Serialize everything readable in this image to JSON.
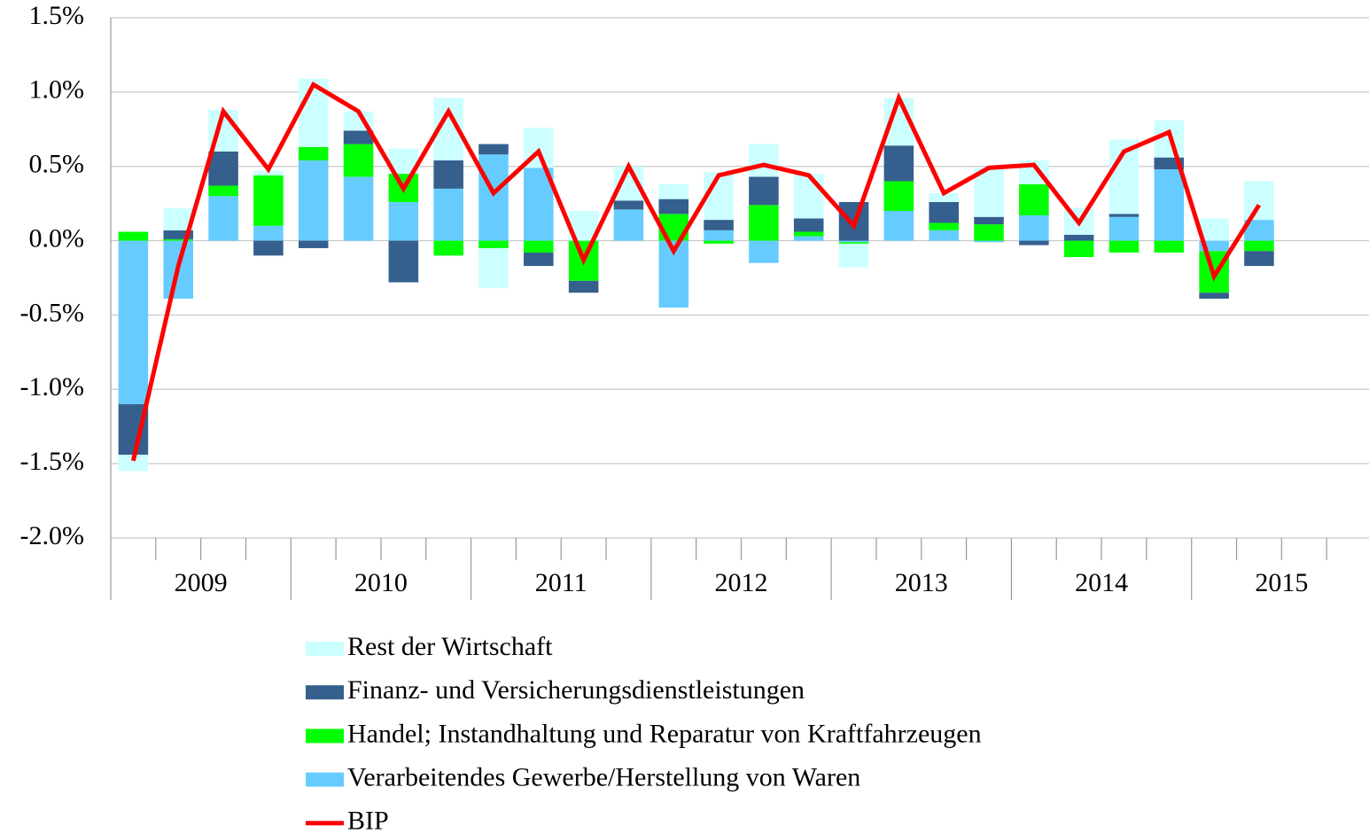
{
  "chart_data": {
    "type": "bar",
    "stacked": true,
    "year_labels": [
      "2009",
      "2010",
      "2011",
      "2012",
      "2013",
      "2014",
      "2015"
    ],
    "ylim": [
      -2.0,
      1.5
    ],
    "yticks": [
      {
        "value": -2.0,
        "label": "-2.0%"
      },
      {
        "value": -1.5,
        "label": "-1.5%"
      },
      {
        "value": -1.0,
        "label": "-1.0%"
      },
      {
        "value": -0.5,
        "label": "-0.5%"
      },
      {
        "value": 0.0,
        "label": "0.0%"
      },
      {
        "value": 0.5,
        "label": "0.5%"
      },
      {
        "value": 1.0,
        "label": "1.0%"
      },
      {
        "value": 1.5,
        "label": "1.5%"
      }
    ],
    "grid": true,
    "series": [
      {
        "name": "Rest der Wirtschaft",
        "color": "#ccffff",
        "type": "bar",
        "values": [
          -0.11,
          0.15,
          0.28,
          0.03,
          0.46,
          0.13,
          0.17,
          0.42,
          -0.27,
          0.27,
          0.2,
          0.23,
          0.1,
          0.32,
          0.22,
          0.3,
          -0.16,
          0.32,
          0.06,
          0.33,
          0.16,
          0.18,
          0.5,
          0.25,
          0.15,
          0.26,
          null,
          null
        ]
      },
      {
        "name": "Finanz- und Versicherungsdienstleistungen",
        "color": "#355f8d",
        "type": "bar",
        "values": [
          -0.34,
          0.06,
          0.23,
          -0.1,
          -0.05,
          0.09,
          -0.28,
          0.19,
          0.07,
          -0.09,
          -0.08,
          0.06,
          0.1,
          0.07,
          0.19,
          0.09,
          0.26,
          0.24,
          0.14,
          0.05,
          -0.03,
          0.04,
          0.02,
          0.08,
          -0.04,
          -0.1,
          null,
          null
        ]
      },
      {
        "name": "Handel; Instandhaltung und Reparatur von Kraftfahrzeugen",
        "color": "#00ff00",
        "type": "bar",
        "values": [
          0.06,
          0.01,
          0.07,
          0.34,
          0.09,
          0.22,
          0.19,
          -0.1,
          -0.05,
          -0.08,
          -0.27,
          0.0,
          0.18,
          -0.02,
          0.24,
          0.03,
          -0.01,
          0.2,
          0.05,
          0.11,
          0.21,
          -0.11,
          -0.08,
          -0.08,
          -0.28,
          -0.07,
          null,
          null
        ]
      },
      {
        "name": "Verarbeitendes Gewerbe/Herstellung von Waren",
        "color": "#66ccff",
        "type": "bar",
        "values": [
          -1.1,
          -0.39,
          0.3,
          0.1,
          0.54,
          0.43,
          0.26,
          0.35,
          0.58,
          0.49,
          0.0,
          0.21,
          -0.45,
          0.07,
          -0.15,
          0.03,
          -0.01,
          0.2,
          0.07,
          -0.01,
          0.17,
          0.0,
          0.16,
          0.48,
          -0.07,
          0.14,
          null,
          null
        ]
      },
      {
        "name": "BIP",
        "color": "#ff0000",
        "type": "line",
        "values": [
          -1.48,
          -0.17,
          0.87,
          0.48,
          1.05,
          0.87,
          0.35,
          0.87,
          0.32,
          0.6,
          -0.13,
          0.5,
          -0.07,
          0.44,
          0.51,
          0.44,
          0.1,
          0.96,
          0.32,
          0.49,
          0.51,
          0.12,
          0.6,
          0.73,
          -0.24,
          0.24,
          null,
          null
        ]
      }
    ]
  }
}
